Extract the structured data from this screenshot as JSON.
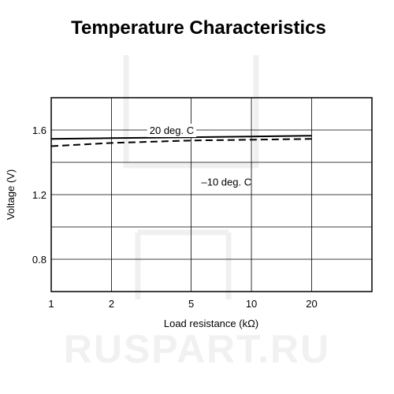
{
  "watermark": {
    "text": "RUSPART.RU",
    "color": "#f1f1f1"
  },
  "chart_data": {
    "type": "line",
    "title": "Temperature Characteristics",
    "xlabel": "Load resistance (kΩ)",
    "ylabel": "Voltage (V)",
    "x_scale": "log",
    "xlim": [
      1,
      40
    ],
    "ylim": [
      0.6,
      1.8
    ],
    "x_ticks": [
      1,
      2,
      5,
      10,
      20
    ],
    "x_tick_labels": [
      "1",
      "2",
      "5",
      "10",
      "20"
    ],
    "x_grid": [
      1,
      2,
      5,
      10,
      20,
      40
    ],
    "y_ticks": [
      0.8,
      1.2,
      1.6
    ],
    "y_tick_labels": [
      "0.8",
      "1.2",
      "1.6"
    ],
    "y_grid": [
      0.6,
      0.8,
      1.0,
      1.2,
      1.4,
      1.6,
      1.8
    ],
    "grid": true,
    "series": [
      {
        "name": "20 deg. C",
        "style": "solid",
        "color": "#000000",
        "x": [
          1,
          2,
          5,
          10,
          20
        ],
        "y": [
          1.545,
          1.55,
          1.555,
          1.56,
          1.565
        ]
      },
      {
        "name": "–10 deg. C",
        "style": "dashed",
        "color": "#000000",
        "x": [
          1,
          2,
          5,
          10,
          20
        ],
        "y": [
          1.5,
          1.52,
          1.535,
          1.54,
          1.545
        ]
      }
    ],
    "annotations": [
      {
        "text": "20 deg. C",
        "x": 4.0,
        "y": 1.6
      },
      {
        "text": "–10 deg. C",
        "x": 7.5,
        "y": 1.28
      }
    ]
  }
}
